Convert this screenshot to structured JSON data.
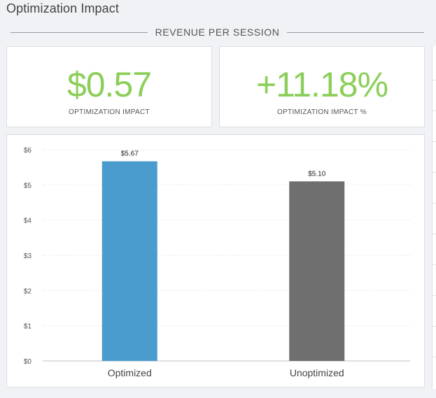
{
  "page": {
    "title": "Optimization Impact"
  },
  "section": {
    "title": "REVENUE PER SESSION"
  },
  "metrics": [
    {
      "value": "$0.57",
      "label": "OPTIMIZATION IMPACT"
    },
    {
      "value": "+11.18%",
      "label": "OPTIMIZATION IMPACT %"
    }
  ],
  "colors": {
    "positive": "#8bcf5a",
    "optimized_bar": "#4b9cce",
    "unoptimized_bar": "#6f6f6f"
  },
  "chart_data": {
    "type": "bar",
    "categories": [
      "Optimized",
      "Unoptimized"
    ],
    "values": [
      5.67,
      5.1
    ],
    "value_labels": [
      "$5.67",
      "$5.10"
    ],
    "colors": [
      "#4b9cce",
      "#6f6f6f"
    ],
    "ylim": [
      0,
      6
    ],
    "yticks": [
      0,
      1,
      2,
      3,
      4,
      5,
      6
    ],
    "ytick_labels": [
      "$0",
      "$1",
      "$2",
      "$3",
      "$4",
      "$5",
      "$6"
    ],
    "grid": true,
    "title": "",
    "xlabel": "",
    "ylabel": ""
  }
}
